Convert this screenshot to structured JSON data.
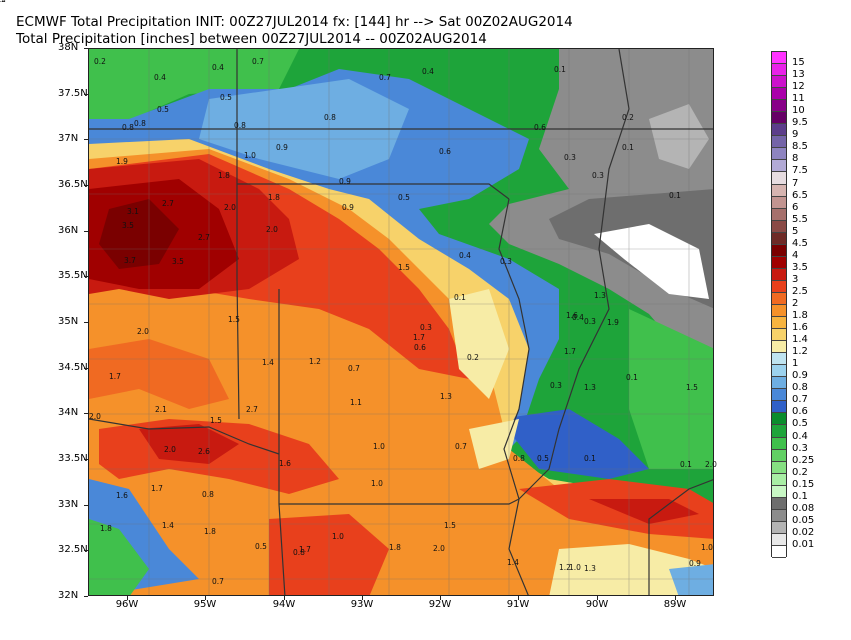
{
  "header": {
    "line1": "ECMWF Total Precipitation INIT: 00Z27JUL2014  fx: [144] hr --> Sat 00Z02AUG2014",
    "line2": "Total Precipitation [inches] between 00Z27JUL2014 -- 00Z02AUG2014"
  },
  "axes": {
    "lat_labels": [
      "38N",
      "37.5N",
      "37N",
      "36.5N",
      "36N",
      "35.5N",
      "35N",
      "34.5N",
      "34N",
      "33.5N",
      "33N",
      "32.5N",
      "32N"
    ],
    "lon_labels": [
      "96W",
      "95W",
      "94W",
      "93W",
      "92W",
      "91W",
      "90W",
      "89W"
    ]
  },
  "legend": {
    "labels": [
      "15",
      "13",
      "12",
      "11",
      "10",
      "9.5",
      "9",
      "8.5",
      "8",
      "7.5",
      "7",
      "6.5",
      "6",
      "5.5",
      "5",
      "4.5",
      "4",
      "3.5",
      "3",
      "2.5",
      "2",
      "1.8",
      "1.6",
      "1.4",
      "1.2",
      "1",
      "0.9",
      "0.8",
      "0.7",
      "0.6",
      "0.5",
      "0.4",
      "0.3",
      "0.25",
      "0.2",
      "0.15",
      "0.1",
      "0.08",
      "0.05",
      "0.02",
      "0.01"
    ],
    "colors": [
      "#ff33ff",
      "#e822e8",
      "#cc11cc",
      "#aa00aa",
      "#880088",
      "#660066",
      "#5c3d8a",
      "#7464a8",
      "#8e84c0",
      "#b2aad6",
      "#e6dce0",
      "#d6b4b0",
      "#c29490",
      "#a6706c",
      "#8a4a46",
      "#6e2a26",
      "#7a0000",
      "#a00000",
      "#c81a10",
      "#e8401c",
      "#f06a22",
      "#f5912a",
      "#f7b440",
      "#f7d26a",
      "#f7eca6",
      "#bfe3f0",
      "#9cd2ee",
      "#6eaee2",
      "#4a88d8",
      "#3060c8",
      "#0a8c2c",
      "#1ea43a",
      "#40c04c",
      "#62d064",
      "#86e082",
      "#a8eea4",
      "#c8f7c4",
      "#6e6e6e",
      "#8c8c8c",
      "#b4b4b4",
      "#e8e8e8",
      "#ffffff"
    ]
  },
  "map_labels": [
    "0.2",
    "0.4",
    "0.4",
    "0.7",
    "0.7",
    "0.4",
    "0.1",
    "0.5",
    "0.5",
    "0.8",
    "0.8",
    "0.8",
    "0.8",
    "0.6",
    "0.2",
    "1.9",
    "1.0",
    "0.9",
    "1.8",
    "0.6",
    "0.3",
    "0.1",
    "3.1",
    "2.7",
    "2.0",
    "1.8",
    "0.9",
    "0.9",
    "0.3",
    "0.1",
    "3.5",
    "2.7",
    "2.0",
    "0.5",
    "3.7",
    "3.5",
    "1.5",
    "0.4",
    "0.3",
    "1.3",
    "0.1",
    "0.4",
    "0.3",
    "1.9",
    "2.0",
    "1.5",
    "0.3",
    "1.6",
    "1.7",
    "0.6",
    "1.7",
    "1.7",
    "1.4",
    "1.2",
    "0.2",
    "1.3",
    "0.7",
    "0.3",
    "0.1",
    "1.5",
    "1.3",
    "1.1",
    "2.0",
    "2.1",
    "1.5",
    "2.7",
    "2.0",
    "2.6",
    "1.6",
    "1.0",
    "0.7",
    "0.8",
    "0.5",
    "0.1",
    "0.1",
    "2.0",
    "1.7",
    "1.0",
    "1.6",
    "0.8",
    "1.5",
    "1.4",
    "1.8",
    "1.8",
    "1.0",
    "1.7",
    "1.8",
    "2.0",
    "1.4",
    "1.0",
    "0.5",
    "0.8",
    "0.7",
    "1.2",
    "1.3",
    "0.9",
    "1.0",
    "0.9",
    "1.2"
  ]
}
